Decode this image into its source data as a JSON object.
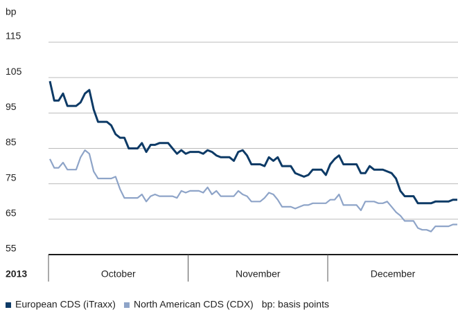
{
  "chart_data": {
    "type": "line",
    "y_unit": "bp",
    "year": "2013",
    "months": [
      "October",
      "November",
      "December"
    ],
    "note": "bp: basis points",
    "categories": [
      null,
      null,
      null,
      null,
      null,
      null,
      null,
      null,
      null,
      null,
      null,
      null,
      null,
      null,
      null,
      null,
      null,
      null,
      null,
      null,
      null,
      null,
      null,
      null,
      null,
      null,
      null,
      null,
      null,
      null,
      null,
      null,
      null,
      null,
      null,
      null,
      null,
      null,
      null,
      null,
      null,
      null,
      null,
      null,
      null,
      null,
      null,
      null,
      null,
      null,
      null,
      null,
      null,
      null,
      null,
      null,
      null,
      null,
      null,
      null,
      null,
      null,
      null,
      null,
      null,
      null,
      null,
      null,
      null,
      null,
      null,
      null,
      null,
      null,
      null,
      null,
      null,
      null,
      null,
      null,
      null,
      null,
      null,
      null,
      null,
      null,
      null,
      null,
      null,
      null,
      null,
      null,
      null,
      null
    ],
    "series": [
      {
        "name": "European CDS (iTraxx)",
        "color": "#0d3a66",
        "values": [
          104,
          98.5,
          98.5,
          100.5,
          97,
          97,
          97,
          98,
          100.5,
          101.5,
          96,
          92.5,
          92.5,
          92.5,
          91.5,
          89,
          88,
          88,
          85,
          85,
          85,
          86.5,
          84,
          86,
          86,
          86.5,
          86.5,
          86.5,
          85,
          83.5,
          84.5,
          83.5,
          84,
          84,
          84,
          83.5,
          84.5,
          84,
          83,
          82.5,
          82.5,
          82.5,
          81.5,
          84,
          84.5,
          83,
          80.5,
          80.5,
          80.5,
          80,
          82.5,
          81.5,
          82.5,
          80,
          80,
          80,
          78,
          77.5,
          77,
          77.5,
          79,
          79,
          79,
          77.5,
          80.5,
          82,
          83,
          80.5,
          80.5,
          80.5,
          80.5,
          78,
          78,
          80,
          79,
          79,
          79,
          78.5,
          78,
          76.5,
          73,
          71.5,
          71.5,
          71.5,
          69.5,
          69.5,
          69.5,
          69.5,
          70,
          70,
          70,
          70,
          70.5,
          70.5
        ]
      },
      {
        "name": "North American CDS (CDX)",
        "color": "#8ea4c8",
        "values": [
          82,
          79.5,
          79.5,
          81,
          79,
          79,
          79,
          82.5,
          84.5,
          83.5,
          78.5,
          76.5,
          76.5,
          76.5,
          76.5,
          77,
          73.5,
          71,
          71,
          71,
          71,
          72,
          70,
          71.5,
          72,
          71.5,
          71.5,
          71.5,
          71.5,
          71,
          73,
          72.5,
          73,
          73,
          73,
          72.5,
          74,
          72,
          73,
          71.5,
          71.5,
          71.5,
          71.5,
          73,
          72,
          71.5,
          70,
          70,
          70,
          71,
          72.5,
          72,
          70.5,
          68.5,
          68.5,
          68.5,
          68,
          68.5,
          69,
          69,
          69.5,
          69.5,
          69.5,
          69.5,
          70.5,
          70.5,
          72,
          69,
          69,
          69,
          69,
          67.5,
          70,
          70,
          70,
          69.5,
          69.5,
          70,
          68.5,
          67,
          66,
          64.5,
          64.5,
          64.5,
          62.5,
          62,
          62,
          61.5,
          63,
          63,
          63,
          63,
          63.5,
          63.5
        ]
      }
    ],
    "ylim": [
      55,
      115
    ],
    "yticks": [
      55,
      65,
      75,
      85,
      95,
      105,
      115
    ],
    "grid": true
  }
}
